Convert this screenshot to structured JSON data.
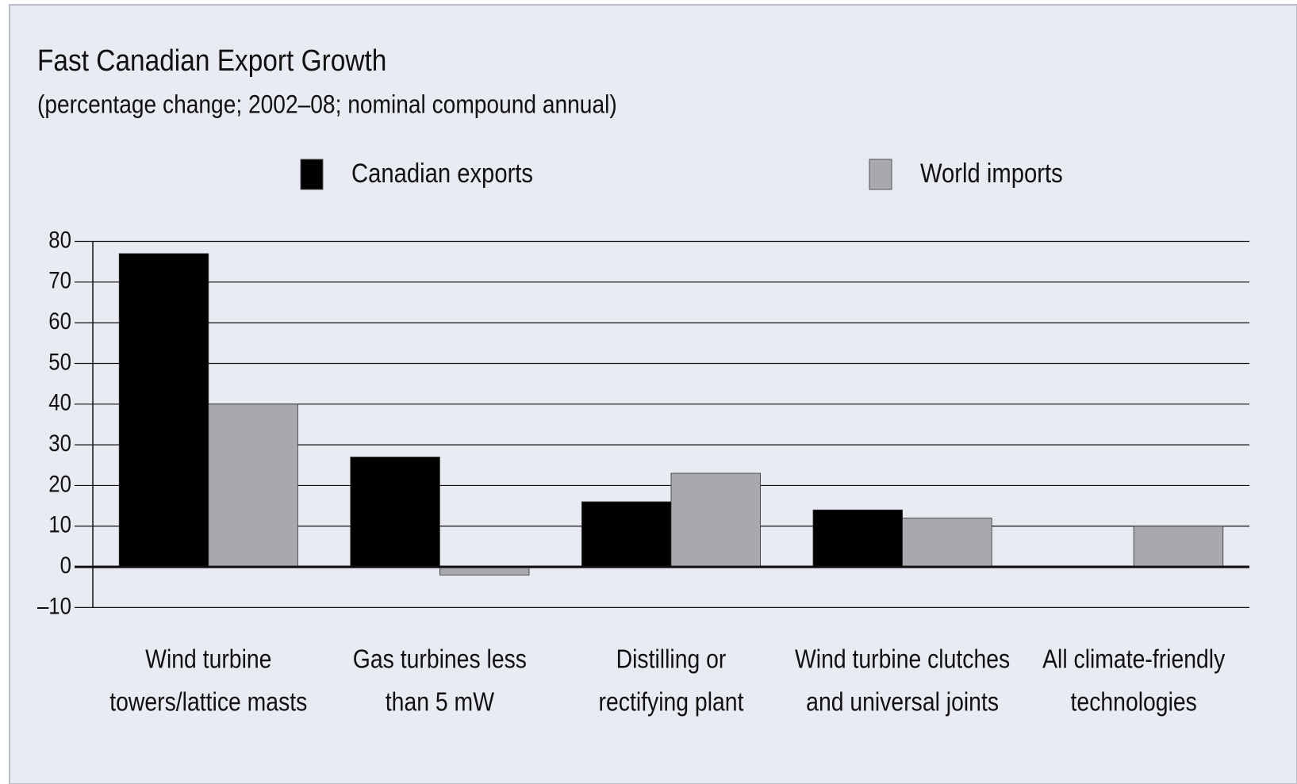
{
  "chart_data": {
    "type": "bar",
    "title": "Fast Canadian Export Growth",
    "subtitle": "(percentage change; 2002–08; nominal compound annual)",
    "categories": [
      [
        "Wind turbine",
        "towers/lattice masts"
      ],
      [
        "Gas turbines less",
        "than 5 mW"
      ],
      [
        "Distilling or",
        "rectifying plant"
      ],
      [
        "Wind turbine clutches",
        "and universal joints"
      ],
      [
        "All climate-friendly",
        "technologies"
      ]
    ],
    "series": [
      {
        "name": "Canadian exports",
        "color": "#000000",
        "values": [
          77,
          27,
          16,
          14,
          null
        ]
      },
      {
        "name": "World imports",
        "color": "#a7a9ac",
        "values": [
          40,
          -2,
          23,
          12,
          10
        ]
      }
    ],
    "ylim": [
      -10,
      80
    ],
    "yticks": [
      {
        "value": -10,
        "label": "–10"
      },
      0,
      10,
      20,
      30,
      40,
      50,
      60,
      70,
      80
    ],
    "grid": true
  }
}
